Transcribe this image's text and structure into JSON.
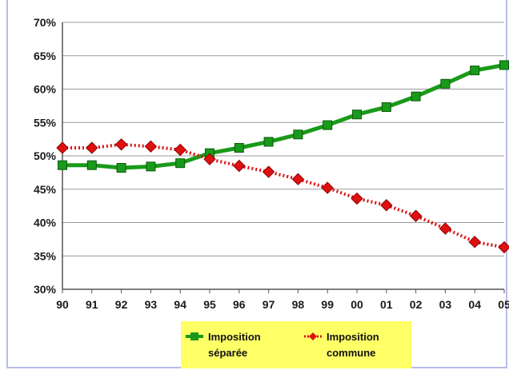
{
  "chart_data": {
    "type": "line",
    "categories": [
      "90",
      "91",
      "92",
      "93",
      "94",
      "95",
      "96",
      "97",
      "98",
      "99",
      "00",
      "01",
      "02",
      "03",
      "04",
      "05"
    ],
    "ylim": [
      30,
      70
    ],
    "yticks": [
      "30%",
      "35%",
      "40%",
      "45%",
      "50%",
      "55%",
      "60%",
      "65%",
      "70%"
    ],
    "grid": true,
    "legend_position": "bottom",
    "series": [
      {
        "name": "Imposition séparée",
        "name_lines": [
          "Imposition",
          "séparée"
        ],
        "color": "#1a9a1a",
        "marker": "square",
        "style": "solid",
        "values": [
          48.6,
          48.6,
          48.2,
          48.4,
          48.9,
          50.4,
          51.2,
          52.1,
          53.2,
          54.6,
          56.2,
          57.3,
          58.9,
          60.8,
          62.8,
          63.6
        ]
      },
      {
        "name": "Imposition commune",
        "name_lines": [
          "Imposition",
          "commune"
        ],
        "color": "#e01010",
        "marker": "diamond",
        "style": "dotted",
        "values": [
          51.2,
          51.2,
          51.7,
          51.4,
          50.9,
          49.5,
          48.5,
          47.6,
          46.5,
          45.2,
          43.6,
          42.6,
          41.0,
          39.1,
          37.1,
          36.3
        ]
      }
    ],
    "colors": {
      "plot_background": "#ffffff",
      "grid": "#9a9a9a",
      "legend_background": "#ffff66",
      "frame_border": "#b7bce8"
    }
  }
}
